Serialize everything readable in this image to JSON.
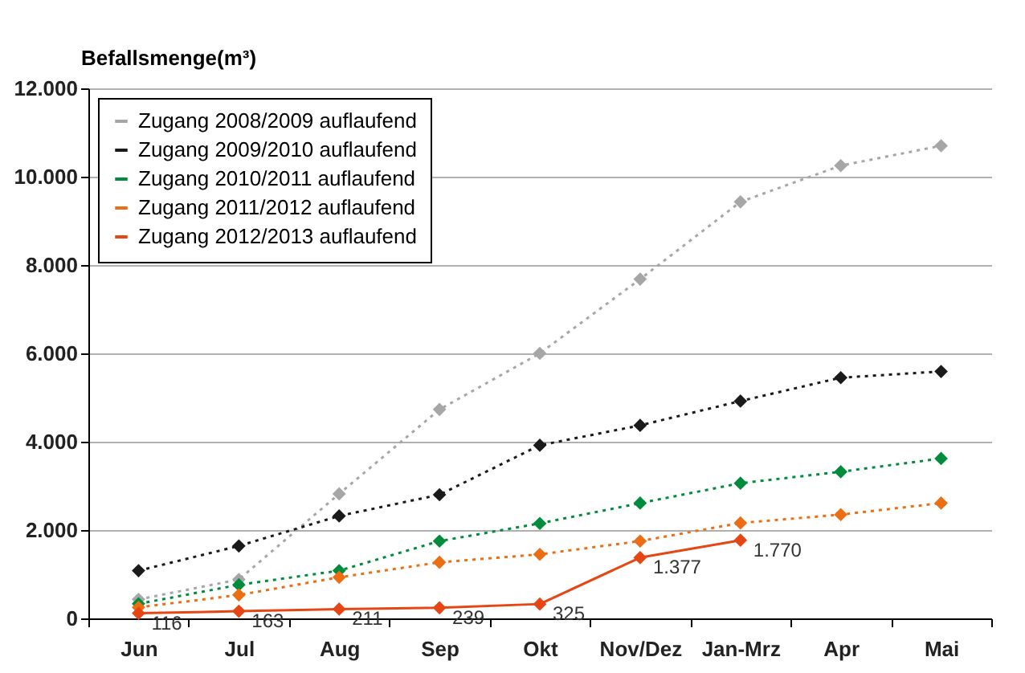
{
  "chart_data": {
    "type": "line",
    "ylabel": "Befallsmenge(m³)",
    "categories": [
      "Jun",
      "Jul",
      "Aug",
      "Sep",
      "Okt",
      "Nov/Dez",
      "Jan-Mrz",
      "Apr",
      "Mai"
    ],
    "series": [
      {
        "name": "Zugang 2008/2009 auflaufend",
        "color": "#a6a6a6",
        "line_style": "dotted",
        "values": [
          430,
          880,
          2820,
          4730,
          6000,
          7680,
          9430,
          10250,
          10700
        ]
      },
      {
        "name": "Zugang 2009/2010 auflaufend",
        "color": "#1a1a1a",
        "line_style": "dotted",
        "values": [
          1080,
          1640,
          2320,
          2800,
          3920,
          4370,
          4920,
          5450,
          5590
        ]
      },
      {
        "name": "Zugang 2010/2011 auflaufend",
        "color": "#008c3c",
        "line_style": "dotted",
        "values": [
          330,
          760,
          1080,
          1750,
          2150,
          2610,
          3060,
          3320,
          3620
        ]
      },
      {
        "name": "Zugang 2011/2012 auflaufend",
        "color": "#eb6e14",
        "line_style": "dotted",
        "values": [
          250,
          530,
          930,
          1270,
          1450,
          1750,
          2160,
          2350,
          2610
        ]
      },
      {
        "name": "Zugang 2012/2013 auflaufend",
        "color": "#e64614",
        "line_style": "solid",
        "values": [
          116,
          163,
          211,
          239,
          325,
          1377,
          1770,
          null,
          null
        ],
        "value_labels": [
          "116",
          "163",
          "211",
          "239",
          "325",
          "1.377",
          "1.770",
          null,
          null
        ]
      }
    ],
    "ylim": [
      0,
      12000
    ],
    "yticks": [
      {
        "value": 0,
        "label": "0"
      },
      {
        "value": 2000,
        "label": "2.000"
      },
      {
        "value": 4000,
        "label": "4.000"
      },
      {
        "value": 6000,
        "label": "6.000"
      },
      {
        "value": 8000,
        "label": "8.000"
      },
      {
        "value": 10000,
        "label": "10.000"
      },
      {
        "value": 12000,
        "label": "12.000"
      }
    ],
    "grid": "y",
    "legend": "top left",
    "marker": "diamond"
  }
}
